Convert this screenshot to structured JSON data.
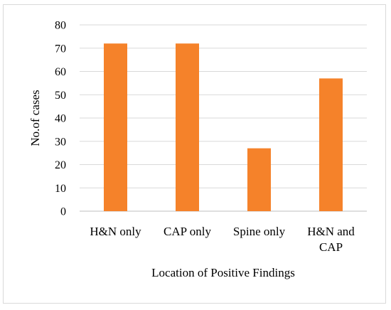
{
  "chart_data": {
    "type": "bar",
    "categories": [
      "H&N only",
      "CAP only",
      "Spine only",
      "H&N and CAP"
    ],
    "category_lines": [
      [
        "H&N only"
      ],
      [
        "CAP only"
      ],
      [
        "Spine only"
      ],
      [
        "H&N and",
        "CAP"
      ]
    ],
    "values": [
      72,
      72,
      27,
      57
    ],
    "title": "",
    "xlabel": "Location of Positive Findings",
    "ylabel": "No.of cases",
    "ylim": [
      0,
      80
    ],
    "yticks": [
      0,
      10,
      20,
      30,
      40,
      50,
      60,
      70,
      80
    ],
    "grid": true,
    "legend": "none",
    "bar_color": "#F5822A",
    "grid_color": "#d9d9d9"
  }
}
